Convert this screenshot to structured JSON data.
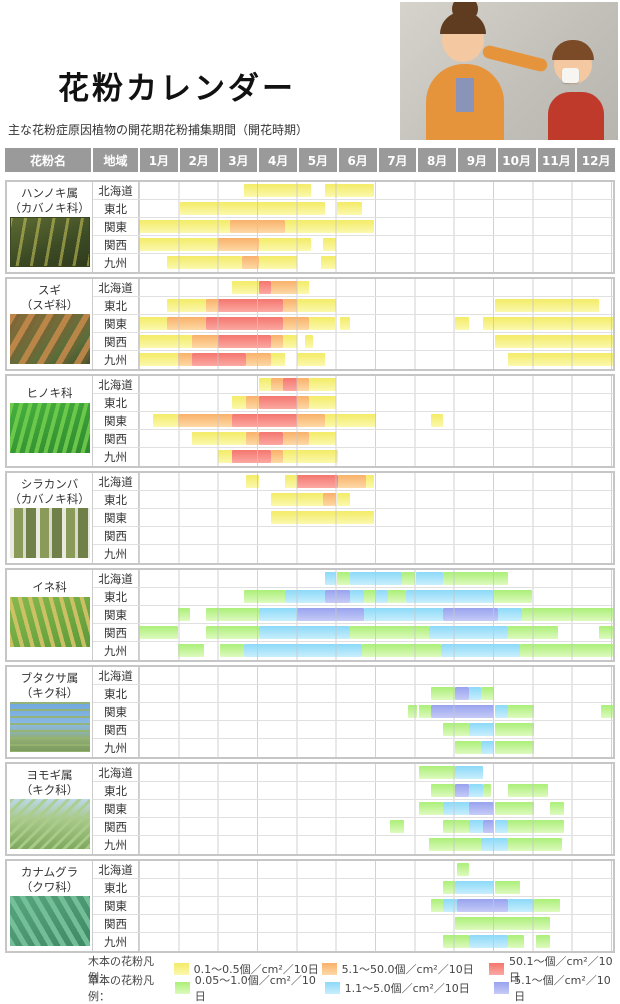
{
  "page": {
    "title": "花粉カレンダー",
    "subtitle": "主な花粉症原因植物の開花期花粉捕集期間（開花時期）"
  },
  "header": {
    "pollen_name": "花粉名",
    "region": "地域",
    "months": [
      "1月",
      "2月",
      "3月",
      "4月",
      "5月",
      "6月",
      "7月",
      "8月",
      "9月",
      "10月",
      "11月",
      "12月"
    ]
  },
  "regions": [
    "北海道",
    "東北",
    "関東",
    "関西",
    "九州"
  ],
  "colors": {
    "header_bg": "#9a9a9a",
    "grid_line": "#cccccc",
    "section_border": "#c6c6c6",
    "levels": {
      "t1": [
        "#f3eb67",
        "#fbf8ad"
      ],
      "t2": [
        "#f9b169",
        "#fdd9a6"
      ],
      "t3": [
        "#f4776f",
        "#fba8a2"
      ],
      "g1": [
        "#abef78",
        "#ddfabe"
      ],
      "g2": [
        "#8cd9f8",
        "#c8eefc"
      ],
      "g3": [
        "#98a3ee",
        "#c6cbf6"
      ]
    }
  },
  "legend": {
    "tree_label": "木本の花粉凡例：",
    "grass_label": "草本の花粉凡例：",
    "tree_items": [
      {
        "level": "t1",
        "label": "0.1～0.5個／cm²／10日"
      },
      {
        "level": "t2",
        "label": "5.1～50.0個／cm²／10日"
      },
      {
        "level": "t3",
        "label": "50.1～個／cm²／10日"
      }
    ],
    "grass_items": [
      {
        "level": "g1",
        "label": "0.05～1.0個／cm²／10日"
      },
      {
        "level": "g2",
        "label": "1.1～5.0個／cm²／10日"
      },
      {
        "level": "g3",
        "label": "5.1～個／cm²／10日"
      }
    ]
  },
  "chart_data": {
    "type": "heatmap",
    "x_categories": [
      "1月",
      "2月",
      "3月",
      "4月",
      "5月",
      "6月",
      "7月",
      "8月",
      "9月",
      "10月",
      "11月",
      "12月"
    ],
    "unit": "個/cm²/10日",
    "scale_note": "segments are [start,end,level] in month units 0-12 (0=Jan 1, 12=Dec 31)",
    "level_meaning": {
      "t1": "木本 0.1～0.5個/cm²/10日",
      "t2": "木本 5.1～50.0個/cm²/10日",
      "t3": "木本 50.1～個/cm²/10日",
      "g1": "草本 0.05～1.0個/cm²/10日",
      "g2": "草本 1.1～5.0個/cm²/10日",
      "g3": "草本 5.1～個/cm²/10日"
    },
    "sections": [
      {
        "name": "ハンノキ属",
        "family": "（カバノキ科）",
        "photo": "alder",
        "rows": {
          "北海道": [
            [
              2.65,
              4.35,
              "t1"
            ],
            [
              4.7,
              5.95,
              "t1"
            ]
          ],
          "東北": [
            [
              1.05,
              4.7,
              "t1"
            ],
            [
              5.0,
              5.65,
              "t1"
            ]
          ],
          "関東": [
            [
              0,
              2.3,
              "t1"
            ],
            [
              2.3,
              3.7,
              "t2"
            ],
            [
              3.7,
              5.95,
              "t1"
            ]
          ],
          "関西": [
            [
              0,
              2.0,
              "t1"
            ],
            [
              2.0,
              3.05,
              "t2"
            ],
            [
              3.05,
              4.35,
              "t1"
            ],
            [
              4.65,
              5.0,
              "t1"
            ]
          ],
          "九州": [
            [
              0.7,
              2.6,
              "t1"
            ],
            [
              2.6,
              3.05,
              "t2"
            ],
            [
              3.05,
              4.0,
              "t1"
            ],
            [
              4.6,
              5.0,
              "t1"
            ]
          ]
        }
      },
      {
        "name": "スギ",
        "family": "（スギ科）",
        "photo": "cedar",
        "rows": {
          "北海道": [
            [
              2.35,
              3.05,
              "t1"
            ],
            [
              3.05,
              3.35,
              "t3"
            ],
            [
              3.35,
              4.0,
              "t2"
            ],
            [
              4.0,
              4.3,
              "t1"
            ]
          ],
          "東北": [
            [
              0.7,
              1.7,
              "t1"
            ],
            [
              1.7,
              2.0,
              "t2"
            ],
            [
              2.0,
              3.65,
              "t3"
            ],
            [
              3.65,
              4.0,
              "t2"
            ],
            [
              4.0,
              5.0,
              "t1"
            ],
            [
              9.0,
              11.65,
              "t1"
            ]
          ],
          "関東": [
            [
              0,
              0.7,
              "t1"
            ],
            [
              0.7,
              1.7,
              "t2"
            ],
            [
              1.7,
              3.65,
              "t3"
            ],
            [
              3.65,
              4.3,
              "t2"
            ],
            [
              4.3,
              4.95,
              "t1"
            ],
            [
              5.1,
              5.35,
              "t1"
            ],
            [
              8.0,
              8.35,
              "t1"
            ],
            [
              8.7,
              12,
              "t1"
            ]
          ],
          "関西": [
            [
              0,
              1.35,
              "t1"
            ],
            [
              1.35,
              2.0,
              "t2"
            ],
            [
              2.0,
              3.35,
              "t3"
            ],
            [
              3.35,
              3.65,
              "t2"
            ],
            [
              3.65,
              4.0,
              "t1"
            ],
            [
              4.2,
              4.4,
              "t1"
            ],
            [
              9.0,
              12,
              "t1"
            ]
          ],
          "九州": [
            [
              0,
              1.0,
              "t1"
            ],
            [
              1.0,
              1.35,
              "t2"
            ],
            [
              1.35,
              2.7,
              "t3"
            ],
            [
              2.7,
              3.35,
              "t2"
            ],
            [
              3.35,
              3.7,
              "t1"
            ],
            [
              4.0,
              4.7,
              "t1"
            ],
            [
              9.35,
              12,
              "t1"
            ]
          ]
        }
      },
      {
        "name": "ヒノキ科",
        "family": "",
        "photo": "hinoki",
        "rows": {
          "北海道": [
            [
              3.05,
              3.35,
              "t1"
            ],
            [
              3.35,
              3.65,
              "t2"
            ],
            [
              3.65,
              4.0,
              "t3"
            ],
            [
              4.0,
              4.3,
              "t2"
            ],
            [
              4.3,
              5.0,
              "t1"
            ]
          ],
          "東北": [
            [
              2.35,
              2.7,
              "t1"
            ],
            [
              2.7,
              3.05,
              "t2"
            ],
            [
              3.05,
              4.0,
              "t3"
            ],
            [
              4.0,
              4.3,
              "t2"
            ],
            [
              4.3,
              5.0,
              "t1"
            ]
          ],
          "関東": [
            [
              0.35,
              1.0,
              "t1"
            ],
            [
              1.0,
              2.35,
              "t2"
            ],
            [
              2.35,
              4.0,
              "t3"
            ],
            [
              4.0,
              4.7,
              "t2"
            ],
            [
              4.7,
              6.0,
              "t1"
            ],
            [
              7.4,
              7.7,
              "t1"
            ]
          ],
          "関西": [
            [
              1.35,
              2.7,
              "t1"
            ],
            [
              2.7,
              3.05,
              "t2"
            ],
            [
              3.05,
              3.65,
              "t3"
            ],
            [
              3.65,
              4.3,
              "t2"
            ],
            [
              4.3,
              5.0,
              "t1"
            ]
          ],
          "九州": [
            [
              2.0,
              2.35,
              "t1"
            ],
            [
              2.35,
              3.35,
              "t3"
            ],
            [
              3.35,
              3.65,
              "t2"
            ],
            [
              3.65,
              5.05,
              "t1"
            ]
          ]
        }
      },
      {
        "name": "シラカンバ",
        "family": "（カバノキ科）",
        "photo": "birch",
        "rows": {
          "北海道": [
            [
              2.7,
              3.05,
              "t1"
            ],
            [
              3.7,
              4.0,
              "t1"
            ],
            [
              4.0,
              5.05,
              "t3"
            ],
            [
              5.05,
              5.75,
              "t2"
            ],
            [
              5.75,
              5.95,
              "t1"
            ]
          ],
          "東北": [
            [
              3.35,
              4.65,
              "t1"
            ],
            [
              4.65,
              5.0,
              "t2"
            ],
            [
              5.0,
              5.35,
              "t1"
            ]
          ],
          "関東": [
            [
              3.35,
              5.95,
              "t1"
            ]
          ],
          "関西": [],
          "九州": []
        }
      },
      {
        "name": "イネ科",
        "family": "",
        "photo": "rice",
        "rows": {
          "北海道": [
            [
              4.7,
              5.0,
              "g2"
            ],
            [
              5.0,
              5.35,
              "g1"
            ],
            [
              5.35,
              6.65,
              "g2"
            ],
            [
              6.65,
              7.0,
              "g1"
            ],
            [
              7.0,
              7.7,
              "g2"
            ],
            [
              7.7,
              9.35,
              "g1"
            ]
          ],
          "東北": [
            [
              2.65,
              3.7,
              "g1"
            ],
            [
              3.7,
              4.7,
              "g2"
            ],
            [
              4.7,
              5.35,
              "g3"
            ],
            [
              5.35,
              5.7,
              "g2"
            ],
            [
              5.7,
              6.0,
              "g1"
            ],
            [
              6.0,
              6.3,
              "g2"
            ],
            [
              6.3,
              6.75,
              "g1"
            ],
            [
              6.75,
              8.95,
              "g2"
            ],
            [
              8.95,
              9.95,
              "g1"
            ]
          ],
          "関東": [
            [
              1.0,
              1.3,
              "g1"
            ],
            [
              1.7,
              3.05,
              "g1"
            ],
            [
              3.05,
              4.0,
              "g2"
            ],
            [
              4.0,
              5.7,
              "g3"
            ],
            [
              5.7,
              7.7,
              "g2"
            ],
            [
              7.7,
              9.1,
              "g3"
            ],
            [
              9.1,
              9.7,
              "g2"
            ],
            [
              9.7,
              12,
              "g1"
            ]
          ],
          "関西": [
            [
              0,
              1.0,
              "g1"
            ],
            [
              1.7,
              3.05,
              "g1"
            ],
            [
              3.05,
              5.35,
              "g2"
            ],
            [
              5.35,
              7.35,
              "g1"
            ],
            [
              7.35,
              9.35,
              "g2"
            ],
            [
              9.35,
              10.6,
              "g1"
            ],
            [
              11.65,
              12,
              "g1"
            ]
          ],
          "九州": [
            [
              1.0,
              1.65,
              "g1"
            ],
            [
              2.05,
              2.65,
              "g1"
            ],
            [
              2.65,
              5.65,
              "g2"
            ],
            [
              5.65,
              7.65,
              "g1"
            ],
            [
              7.65,
              9.65,
              "g2"
            ],
            [
              9.65,
              12,
              "g1"
            ]
          ]
        }
      },
      {
        "name": "ブタクサ属",
        "family": "（キク科）",
        "photo": "ragweed",
        "rows": {
          "北海道": [],
          "東北": [
            [
              7.4,
              8.0,
              "g1"
            ],
            [
              8.0,
              8.35,
              "g3"
            ],
            [
              8.35,
              8.65,
              "g2"
            ],
            [
              8.65,
              9.0,
              "g1"
            ]
          ],
          "関東": [
            [
              6.8,
              7.05,
              "g1"
            ],
            [
              7.1,
              7.4,
              "g1"
            ],
            [
              7.4,
              9.0,
              "g3"
            ],
            [
              9.0,
              9.35,
              "g2"
            ],
            [
              9.35,
              10.0,
              "g1"
            ],
            [
              11.7,
              12,
              "g1"
            ]
          ],
          "関西": [
            [
              7.7,
              8.35,
              "g1"
            ],
            [
              8.35,
              9.0,
              "g2"
            ],
            [
              9.0,
              10.0,
              "g1"
            ]
          ],
          "九州": [
            [
              8.0,
              8.65,
              "g1"
            ],
            [
              8.65,
              9.0,
              "g2"
            ],
            [
              9.0,
              10.0,
              "g1"
            ]
          ]
        }
      },
      {
        "name": "ヨモギ属",
        "family": "（キク科）",
        "photo": "mugwort",
        "rows": {
          "北海道": [
            [
              7.1,
              8.0,
              "g1"
            ],
            [
              8.0,
              8.7,
              "g2"
            ]
          ],
          "東北": [
            [
              7.4,
              8.0,
              "g1"
            ],
            [
              8.0,
              8.35,
              "g3"
            ],
            [
              8.35,
              8.7,
              "g2"
            ],
            [
              8.7,
              8.9,
              "g1"
            ],
            [
              9.35,
              10.35,
              "g1"
            ]
          ],
          "関東": [
            [
              7.1,
              7.7,
              "g1"
            ],
            [
              7.7,
              8.35,
              "g2"
            ],
            [
              8.35,
              9.0,
              "g3"
            ],
            [
              9.0,
              10.0,
              "g1"
            ],
            [
              10.4,
              10.75,
              "g1"
            ]
          ],
          "関西": [
            [
              6.35,
              6.7,
              "g1"
            ],
            [
              7.7,
              8.35,
              "g1"
            ],
            [
              8.35,
              8.7,
              "g2"
            ],
            [
              8.7,
              9.0,
              "g3"
            ],
            [
              9.0,
              9.35,
              "g2"
            ],
            [
              9.35,
              10.75,
              "g1"
            ]
          ],
          "九州": [
            [
              7.35,
              8.65,
              "g1"
            ],
            [
              8.65,
              9.35,
              "g2"
            ],
            [
              9.35,
              10.7,
              "g1"
            ]
          ]
        }
      },
      {
        "name": "カナムグラ",
        "family": "（クワ科）",
        "photo": "hop",
        "rows": {
          "北海道": [
            [
              8.05,
              8.35,
              "g1"
            ]
          ],
          "東北": [
            [
              7.7,
              8.0,
              "g1"
            ],
            [
              8.0,
              9.0,
              "g2"
            ],
            [
              9.0,
              9.65,
              "g1"
            ]
          ],
          "関東": [
            [
              7.4,
              7.7,
              "g1"
            ],
            [
              7.7,
              8.05,
              "g2"
            ],
            [
              8.05,
              9.35,
              "g3"
            ],
            [
              9.35,
              10.0,
              "g2"
            ],
            [
              10.0,
              10.65,
              "g1"
            ]
          ],
          "関西": [
            [
              8.0,
              10.4,
              "g1"
            ]
          ],
          "九州": [
            [
              7.7,
              8.35,
              "g1"
            ],
            [
              8.35,
              9.35,
              "g2"
            ],
            [
              9.35,
              9.75,
              "g1"
            ],
            [
              10.05,
              10.4,
              "g1"
            ]
          ]
        }
      }
    ]
  }
}
